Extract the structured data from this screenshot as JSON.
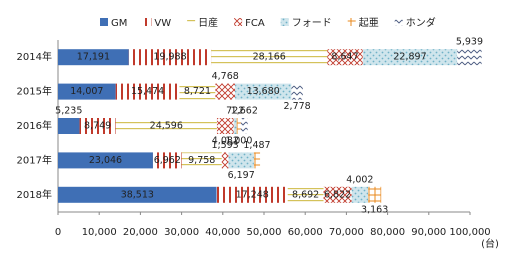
{
  "chart_data": {
    "type": "stacked-bar-horizontal",
    "unit": "(台)",
    "categories": [
      "2014年",
      "2015年",
      "2016年",
      "2017年",
      "2018年"
    ],
    "series": [
      {
        "name": "GM",
        "color": "#3f6fb5",
        "values": [
          17191,
          14007,
          5235,
          23046,
          38513
        ],
        "value_labels": [
          "17,191",
          "14,007",
          "5,235",
          "23,046",
          "38,513"
        ]
      },
      {
        "name": "VW",
        "color": "#c0392b",
        "values": [
          19988,
          15474,
          8749,
          6962,
          17248
        ],
        "value_labels": [
          "19,988",
          "15,474",
          "8,749",
          "6,962",
          "17,248"
        ]
      },
      {
        "name": "日産",
        "color": "#d4c25a",
        "values": [
          28166,
          8721,
          24596,
          9758,
          8692
        ],
        "value_labels": [
          "28,166",
          "8,721",
          "24,596",
          "9,758",
          "8,692"
        ]
      },
      {
        "name": "FCA",
        "color": "#c0392b",
        "values": [
          8647,
          4768,
          4082,
          1593,
          6822
        ],
        "value_labels": [
          "8,647",
          "4,768",
          "4,082",
          "1,593",
          "6,822"
        ]
      },
      {
        "name": "フォード",
        "color": "#6fb1c7",
        "values": [
          22897,
          13680,
          722,
          6197,
          4002
        ],
        "value_labels": [
          "22,897",
          "13,680",
          "722",
          "6,197",
          "4,002"
        ]
      },
      {
        "name": "起亜",
        "color": "#e8891c",
        "values": [
          null,
          null,
          1000,
          1487,
          3163
        ],
        "value_labels": [
          null,
          null,
          "1,000",
          "1,487",
          "3,163"
        ]
      },
      {
        "name": "ホンダ",
        "color": "#4a5a80",
        "values": [
          5939,
          2778,
          1662,
          null,
          null
        ],
        "value_labels": [
          "5,939",
          "2,778",
          "1,662",
          null,
          null
        ]
      }
    ],
    "xlim": [
      0,
      100000
    ],
    "xticks": [
      0,
      {
        "value": 10000,
        "label": "10,000"
      },
      {
        "value": 20000,
        "label": "20,000"
      },
      {
        "value": 30000,
        "label": "30,000"
      },
      {
        "value": 40000,
        "label": "40,000"
      },
      {
        "value": 50000,
        "label": "50,000"
      },
      {
        "value": 60000,
        "label": "60,000"
      },
      {
        "value": 70000,
        "label": "70,000"
      },
      {
        "value": 80000,
        "label": "80,000"
      },
      {
        "value": 90000,
        "label": "90,000"
      },
      {
        "value": 100000,
        "label": "100,000"
      }
    ]
  }
}
